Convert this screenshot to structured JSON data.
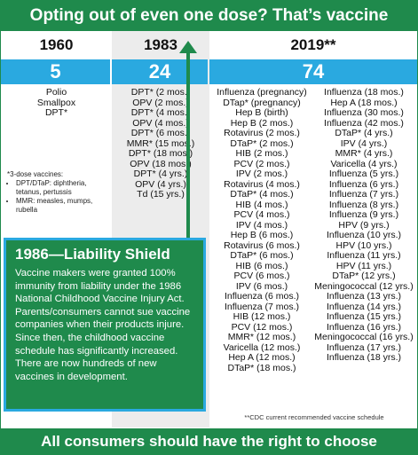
{
  "top_banner": "Opting out of even one dose? That’s vaccine choice.",
  "bottom_banner": "All consumers should have the right to choose",
  "columns": {
    "y1960": {
      "year": "1960",
      "count": "5",
      "items": [
        "Polio",
        "Smallpox",
        "DPT*"
      ],
      "note_title": "*3-dose vaccines:",
      "note_items": [
        "DPT/DTaP: diphtheria, tetanus, pertussis",
        "MMR: measles, mumps, rubella"
      ]
    },
    "y1983": {
      "year": "1983",
      "count": "24",
      "items": [
        "DPT* (2 mos.)",
        "OPV (2 mos.)",
        "DPT* (4 mos.)",
        "OPV (4 mos.)",
        "DPT* (6 mos.)",
        "MMR* (15 mos.)",
        "DPT* (18 mos.)",
        "OPV (18 mos.)",
        "DPT* (4 yrs.)",
        "OPV (4 yrs.)",
        "Td (15 yrs.)"
      ]
    },
    "y2019": {
      "year": "2019**",
      "count": "74",
      "items_left": [
        "Influenza (pregnancy)",
        "DTap* (pregnancy)",
        "Hep B (birth)",
        "Hep B (2 mos.)",
        "Rotavirus (2 mos.)",
        "DTaP* (2 mos.)",
        "HIB (2 mos.)",
        "PCV (2 mos.)",
        "IPV (2 mos.)",
        "Rotavirus (4 mos.)",
        "DTaP* (4 mos.)",
        "HIB (4 mos.)",
        "PCV (4 mos.)",
        "IPV (4 mos.)",
        "Hep B (6 mos.)",
        "Rotavirus (6 mos.)",
        "DTaP* (6 mos.)",
        "HIB (6 mos.)",
        "PCV (6 mos.)",
        "IPV (6 mos.)",
        "Influenza (6 mos.)",
        "Influenza (7 mos.)",
        "HIB (12 mos.)",
        "PCV (12 mos.)",
        "MMR* (12 mos.)",
        "Varicella (12 mos.)",
        "Hep A (12 mos.)",
        "DTaP* (18 mos.)"
      ],
      "items_right": [
        "Influenza (18 mos.)",
        "Hep A (18 mos.)",
        "Influenza (30 mos.)",
        "Influenza (42 mos.)",
        "DTaP* (4 yrs.)",
        "IPV (4 yrs.)",
        "MMR* (4 yrs.)",
        "Varicella (4 yrs.)",
        "Influenza (5 yrs.)",
        "Influenza (6 yrs.)",
        "Influenza (7 yrs.)",
        "Influenza (8 yrs.)",
        "Influenza (9 yrs.)",
        "HPV (9 yrs.)",
        "Influenza (10 yrs.)",
        "HPV (10 yrs.)",
        "Influenza (11 yrs.)",
        "HPV (11 yrs.)",
        "DTaP* (12 yrs.)",
        "Meningococcal (12 yrs.)",
        "Influenza (13 yrs.)",
        "Influenza (14 yrs.)",
        "Influenza (15 yrs.)",
        "Influenza (16 yrs.)",
        "Meningococcal (16 yrs.)",
        "Influenza (17 yrs.)",
        "Influenza (18 yrs.)"
      ],
      "footnote": "**CDC current recommended vaccine schedule"
    }
  },
  "shield": {
    "title": "1986—Liability Shield",
    "body": "Vaccine makers were granted 100% immunity from liability under the 1986 National Childhood Vaccine Injury Act. Parents/consumers cannot sue vaccine companies when their products injure. Since then, the childhood vaccine schedule has significantly increased. There are now hundreds of new vaccines in development."
  },
  "colors": {
    "green": "#1f8a4c",
    "blue": "#2aa9e0",
    "gray": "#ececec"
  }
}
